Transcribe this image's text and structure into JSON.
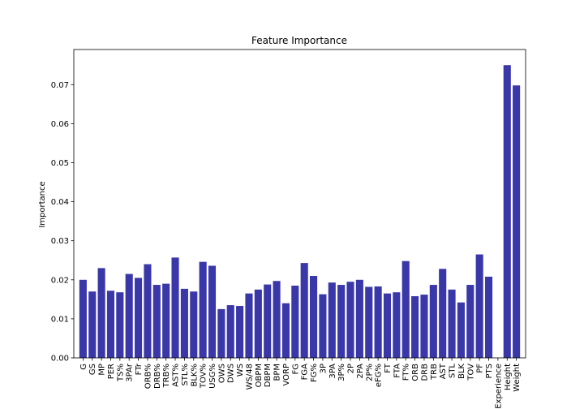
{
  "chart_data": {
    "type": "bar",
    "title": "Feature Importance",
    "xlabel": "",
    "ylabel": "Importance",
    "ylim": [
      0,
      0.079
    ],
    "yticks": [
      0.0,
      0.01,
      0.02,
      0.03,
      0.04,
      0.05,
      0.06,
      0.07
    ],
    "ytick_labels": [
      "0.00",
      "0.01",
      "0.02",
      "0.03",
      "0.04",
      "0.05",
      "0.06",
      "0.07"
    ],
    "bar_color": "#3a37a8",
    "grid": false,
    "categories": [
      "G",
      "GS",
      "MP",
      "PER",
      "TS%",
      "3PAr",
      "FTr",
      "ORB%",
      "DRB%",
      "TRB%",
      "AST%",
      "STL%",
      "BLK%",
      "TOV%",
      "USG%",
      "OWS",
      "DWS",
      "WS",
      "WS/48",
      "OBPM",
      "DBPM",
      "BPM",
      "VORP",
      "FG",
      "FGA",
      "FG%",
      "3P",
      "3PA",
      "3P%",
      "2P",
      "2PA",
      "2P%",
      "eFG%",
      "FT",
      "FTA",
      "FT%",
      "ORB",
      "DRB",
      "TRB",
      "AST",
      "STL",
      "BLK",
      "TOV",
      "PF",
      "PTS",
      "Experience",
      "Height",
      "Weight"
    ],
    "values": [
      0.02,
      0.017,
      0.023,
      0.0172,
      0.0168,
      0.0215,
      0.0205,
      0.024,
      0.0187,
      0.019,
      0.0257,
      0.0177,
      0.017,
      0.0246,
      0.0236,
      0.0125,
      0.0135,
      0.0133,
      0.0165,
      0.0175,
      0.0188,
      0.0197,
      0.014,
      0.0185,
      0.0243,
      0.021,
      0.0163,
      0.0193,
      0.0187,
      0.0195,
      0.02,
      0.0182,
      0.0183,
      0.0165,
      0.0168,
      0.0248,
      0.0158,
      0.0162,
      0.0187,
      0.0228,
      0.0175,
      0.0142,
      0.0187,
      0.0265,
      0.0208,
      0.0,
      0.075,
      0.0698
    ]
  }
}
